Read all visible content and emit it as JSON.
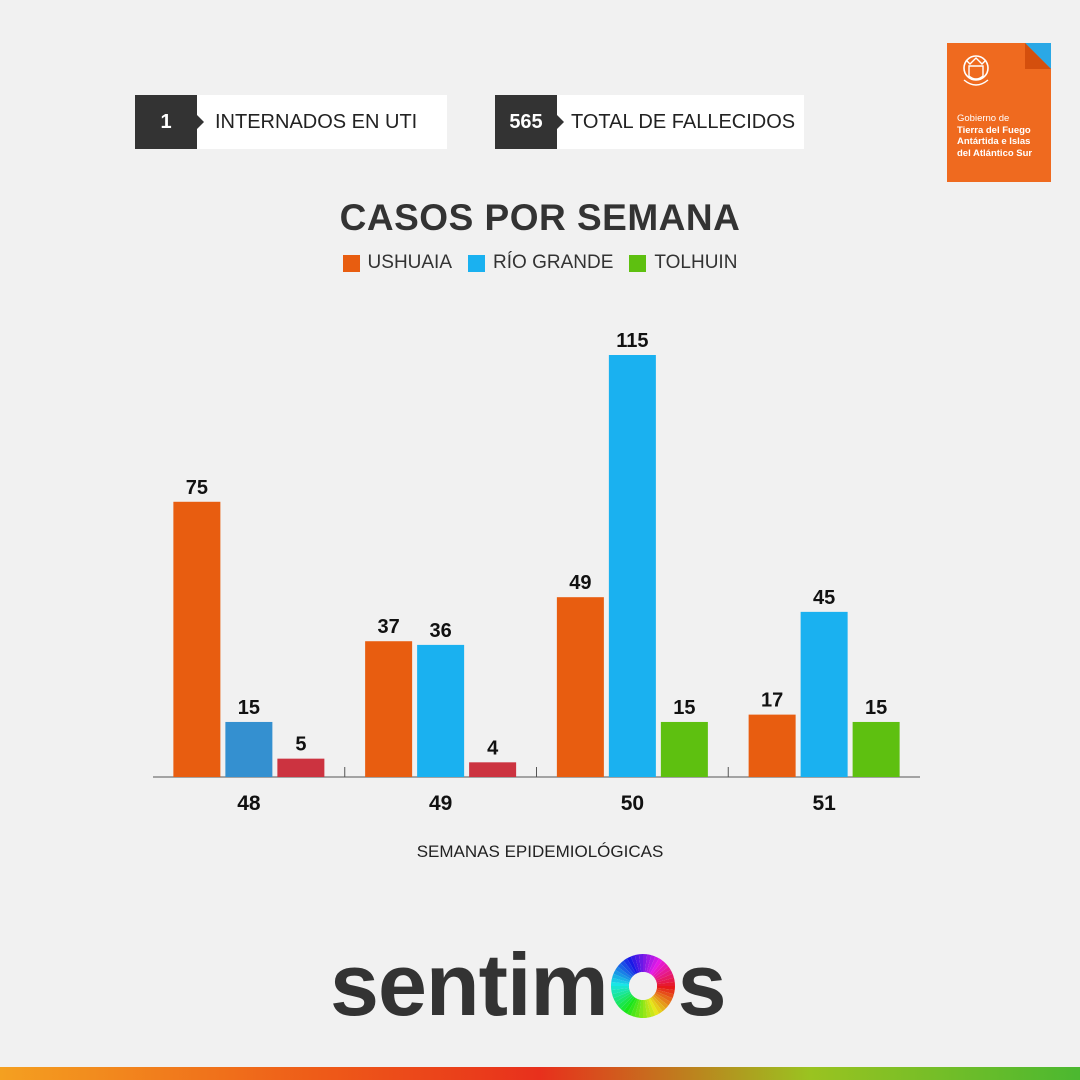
{
  "stats": [
    {
      "value": "1",
      "label": "INTERNADOS EN UTI"
    },
    {
      "value": "565",
      "label": "TOTAL DE FALLECIDOS"
    }
  ],
  "logo": {
    "line1": "Gobierno de",
    "line2": "Tierra del Fuego",
    "line3": "Antártida e Islas",
    "line4": "del Atlántico Sur",
    "color": "#ef6a1f",
    "accent": "#2aa8e6",
    "emblem_icon": "shield-emblem-icon"
  },
  "chart_data": {
    "type": "bar",
    "title": "CASOS POR SEMANA",
    "xlabel": "SEMANAS EPIDEMIOLÓGICAS",
    "ylabel": "",
    "categories": [
      "48",
      "49",
      "50",
      "51"
    ],
    "legend_placement": "top-center",
    "grid": false,
    "series": [
      {
        "name": "USHUAIA",
        "color": "#e85d10",
        "values": [
          75,
          37,
          49,
          17
        ]
      },
      {
        "name": "RÍO GRANDE",
        "color": "#1ab1f0",
        "values": [
          15,
          36,
          115,
          45
        ],
        "colors": [
          "#3490d0",
          "#1ab1f0",
          "#1ab1f0",
          "#1ab1f0"
        ]
      },
      {
        "name": "TOLHUIN",
        "color": "#5ec010",
        "values": [
          5,
          4,
          15,
          15
        ],
        "colors": [
          "#cc3340",
          "#cc3340",
          "#5ec010",
          "#5ec010"
        ]
      }
    ]
  },
  "brand": {
    "text": "sentimos",
    "color": "#333333"
  }
}
